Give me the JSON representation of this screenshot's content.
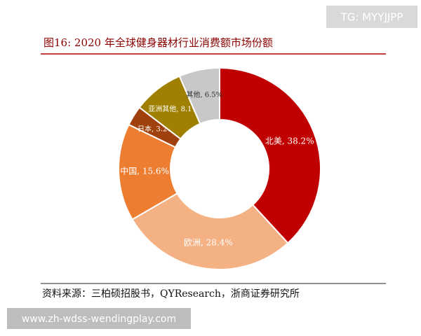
{
  "chart_data": {
    "type": "donut",
    "title": "图16:  2020 年全球健身器材行业消费额市场份额",
    "source": "资料来源：三柏硕招股书，QYResearch，浙商证券研究所",
    "values": [
      38.2,
      28.4,
      15.6,
      3.2,
      8.1,
      6.5
    ],
    "value_labels": [
      "北美, 38.2%",
      "欧洲, 28.4%",
      "中国, 15.6%",
      "日本, 3.2%",
      "亚洲其他, 8.1%",
      "其他, 6.5%"
    ],
    "colors": [
      "#c00000",
      "#f4b183",
      "#ed7d31",
      "#a0410d",
      "#a08000",
      "#c8c8c8"
    ],
    "label_colors": [
      "#ffffff",
      "#ffffff",
      "#ffffff",
      "#ffffff",
      "#ffffff",
      "#333333"
    ]
  },
  "watermarks": {
    "top_right": "TG: MYYJJPP",
    "bottom_left": "www.zh-wdss-wendingplay.com"
  }
}
